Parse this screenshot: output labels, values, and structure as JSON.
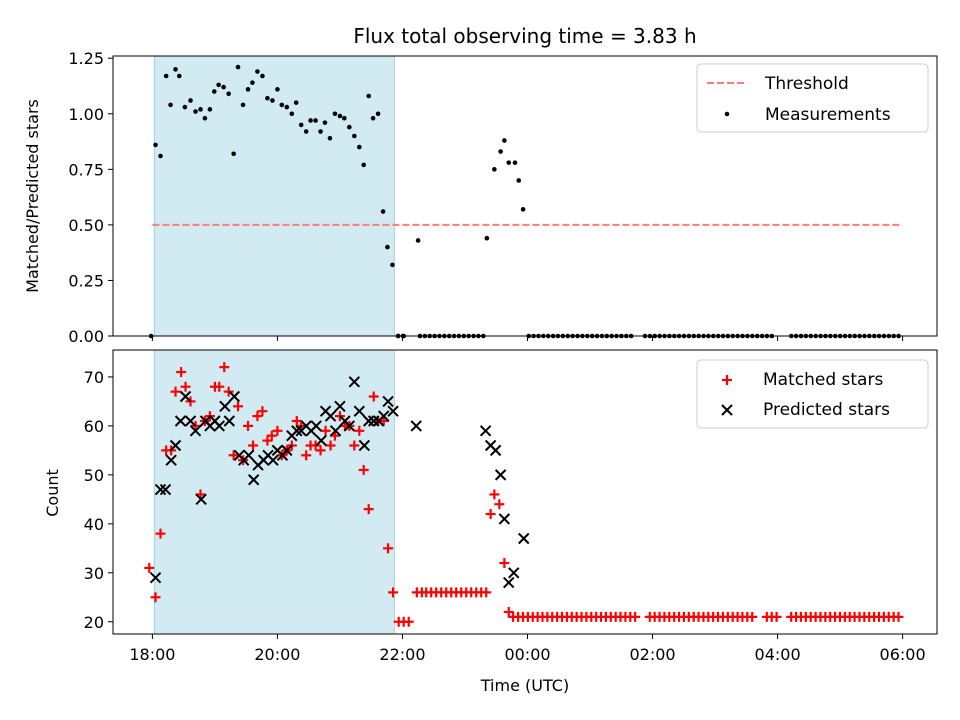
{
  "chart_data": [
    {
      "id": "top",
      "type": "scatter",
      "title": "Flux total observing time = 3.83 h",
      "ylabel": "Matched/Predicted stars",
      "xlim": [
        -0.03,
        12.55
      ],
      "ylim": [
        0,
        1.26
      ],
      "yticks": [
        0,
        0.25,
        0.5,
        0.75,
        1.0,
        1.25
      ],
      "ytick_labels": [
        "0.00",
        "0.25",
        "0.50",
        "0.75",
        "1.00",
        "1.25"
      ],
      "shaded_span": [
        0.03,
        3.87
      ],
      "threshold": {
        "value": 0.5,
        "from": 0.0,
        "to": 12.0,
        "color": "#ff7b7b",
        "label": "Threshold"
      },
      "series": [
        {
          "name": "Measurements",
          "marker": "dot",
          "color": "#000000",
          "x": [
            -0.02,
            0.05,
            0.13,
            0.22,
            0.29,
            0.37,
            0.43,
            0.52,
            0.61,
            0.69,
            0.77,
            0.84,
            0.92,
            0.99,
            1.06,
            1.14,
            1.22,
            1.3,
            1.37,
            1.45,
            1.53,
            1.6,
            1.68,
            1.76,
            1.84,
            1.92,
            2.0,
            2.07,
            2.15,
            2.23,
            2.3,
            2.38,
            2.46,
            2.53,
            2.61,
            2.69,
            2.76,
            2.84,
            2.92,
            3.0,
            3.07,
            3.15,
            3.23,
            3.31,
            3.38,
            3.46,
            3.53,
            3.61,
            3.69,
            3.76,
            3.84,
            3.93,
            4.02,
            4.25,
            5.35,
            5.47,
            5.57,
            5.63,
            5.7,
            5.8,
            5.86,
            5.93
          ],
          "y": [
            0.0,
            0.86,
            0.81,
            1.17,
            1.04,
            1.2,
            1.17,
            1.03,
            1.06,
            1.01,
            1.02,
            0.98,
            1.02,
            1.1,
            1.13,
            1.12,
            1.09,
            0.82,
            1.21,
            1.04,
            1.11,
            1.14,
            1.19,
            1.17,
            1.07,
            1.06,
            1.11,
            1.04,
            1.03,
            1.0,
            1.05,
            0.95,
            0.92,
            0.97,
            0.97,
            0.92,
            0.96,
            0.89,
            1.0,
            0.99,
            0.98,
            0.94,
            0.9,
            0.85,
            0.77,
            1.08,
            0.98,
            1.0,
            0.56,
            0.4,
            0.32,
            0.0,
            0.0,
            0.43,
            0.44,
            0.75,
            0.83,
            0.88,
            0.78,
            0.78,
            0.7,
            0.57
          ]
        }
      ],
      "zero_series_ranges": [
        [
          3.93,
          4.08
        ],
        [
          4.28,
          5.3
        ],
        [
          6.02,
          7.68
        ],
        [
          7.88,
          9.97
        ],
        [
          10.22,
          12.0
        ]
      ],
      "legend": {
        "placement": "top-right",
        "entries": [
          "Threshold",
          "Measurements"
        ]
      }
    },
    {
      "id": "bottom",
      "type": "scatter",
      "title": "",
      "xlabel": "Time (UTC)",
      "ylabel": "Count",
      "xlim": [
        -0.63,
        12.55
      ],
      "ylim": [
        17.5,
        75.5
      ],
      "yticks": [
        20,
        30,
        40,
        50,
        60,
        70
      ],
      "ytick_labels": [
        "20",
        "30",
        "40",
        "50",
        "60",
        "70"
      ],
      "xticks": [
        0,
        2,
        4,
        6,
        8,
        10,
        12
      ],
      "xtick_labels": [
        "18:00",
        "20:00",
        "22:00",
        "00:00",
        "02:00",
        "04:00",
        "06:00"
      ],
      "shaded_span": [
        0.03,
        3.87
      ],
      "series": [
        {
          "name": "Matched stars",
          "marker": "plus",
          "color": "#ff0000",
          "x": [
            -0.05,
            0.05,
            0.13,
            0.22,
            0.3,
            0.37,
            0.46,
            0.53,
            0.61,
            0.69,
            0.77,
            0.84,
            0.92,
            1.0,
            1.07,
            1.15,
            1.22,
            1.3,
            1.37,
            1.45,
            1.53,
            1.61,
            1.68,
            1.76,
            1.84,
            1.91,
            2.0,
            2.07,
            2.15,
            2.23,
            2.31,
            2.38,
            2.46,
            2.53,
            2.61,
            2.69,
            2.77,
            2.85,
            2.92,
            3.0,
            3.08,
            3.15,
            3.23,
            3.31,
            3.38,
            3.46,
            3.54,
            3.61,
            3.7,
            3.77,
            3.85,
            3.94,
            4.02,
            4.1,
            4.23,
            4.31,
            4.38,
            4.46,
            4.54,
            4.62,
            4.7,
            4.78,
            4.86,
            4.94,
            5.02,
            5.1,
            5.18,
            5.26,
            5.34,
            5.41,
            5.47,
            5.55,
            5.63,
            5.7,
            5.77
          ],
          "y": [
            31,
            25,
            38,
            55,
            55,
            67,
            71,
            68,
            65,
            60,
            46,
            61,
            62,
            68,
            68,
            72,
            67,
            54,
            64,
            53,
            60,
            56,
            62,
            63,
            57,
            58,
            59,
            54,
            55,
            56,
            61,
            60,
            54,
            56,
            56,
            55,
            59,
            56,
            58,
            62,
            60,
            60,
            56,
            59,
            51,
            43,
            66,
            61,
            61,
            35,
            26,
            20,
            20,
            20,
            26,
            26,
            26,
            26,
            26,
            26,
            26,
            26,
            26,
            26,
            26,
            26,
            26,
            26,
            26,
            42,
            46,
            44,
            32,
            22,
            21
          ],
          "extra_runs": [
            {
              "from": 5.85,
              "to": 12.0,
              "y": 21,
              "gaps": [
                [
                  7.75,
                  7.88
                ],
                [
                  9.65,
                  9.75
                ],
                [
                  10.0,
                  10.15
                ]
              ]
            }
          ]
        },
        {
          "name": "Predicted stars",
          "marker": "x",
          "color": "#000000",
          "x": [
            0.05,
            0.13,
            0.21,
            0.3,
            0.37,
            0.45,
            0.53,
            0.61,
            0.69,
            0.78,
            0.85,
            0.92,
            1.0,
            1.07,
            1.16,
            1.23,
            1.31,
            1.39,
            1.46,
            1.54,
            1.62,
            1.69,
            1.78,
            1.85,
            1.93,
            2.0,
            2.08,
            2.15,
            2.23,
            2.31,
            2.38,
            2.46,
            2.54,
            2.62,
            2.7,
            2.77,
            2.85,
            2.93,
            3.0,
            3.08,
            3.15,
            3.23,
            3.31,
            3.39,
            3.46,
            3.54,
            3.62,
            3.7,
            3.77,
            3.85,
            4.22,
            5.33,
            5.41,
            5.49,
            5.57,
            5.63,
            5.7,
            5.78,
            5.94
          ],
          "y": [
            29,
            47,
            47,
            53,
            56,
            61,
            66,
            61,
            59,
            45,
            61,
            60,
            61,
            60,
            64,
            61,
            66,
            54,
            53,
            54,
            49,
            52,
            53,
            54,
            53,
            55,
            54,
            55,
            58,
            59,
            59,
            60,
            59,
            60,
            57,
            63,
            62,
            59,
            64,
            61,
            60,
            69,
            63,
            56,
            61,
            61,
            61,
            62,
            65,
            63,
            60,
            59,
            56,
            55,
            50,
            41,
            28,
            30,
            37
          ]
        }
      ],
      "legend": {
        "placement": "top-right",
        "entries": [
          "Matched stars",
          "Predicted stars"
        ]
      }
    }
  ]
}
